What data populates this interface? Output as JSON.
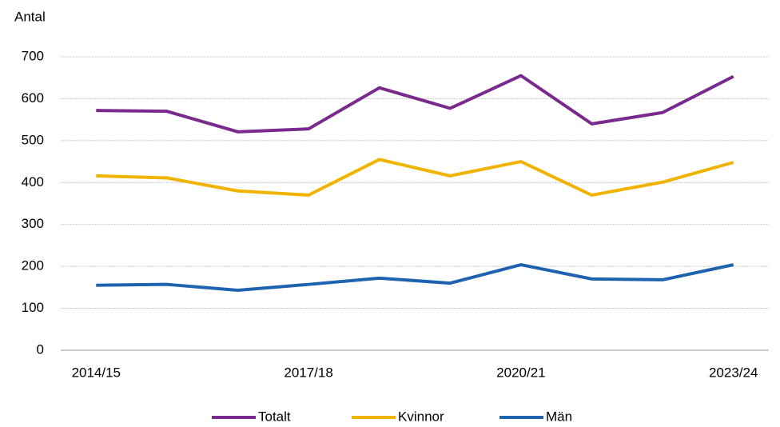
{
  "chart_data": {
    "type": "line",
    "y_label": "Antal",
    "categories": [
      "2014/15",
      null,
      null,
      "2017/18",
      null,
      null,
      "2020/21",
      null,
      null,
      "2023/24"
    ],
    "series": [
      {
        "name": "Totalt",
        "color": "#7a2a8c",
        "values": [
          572,
          570,
          521,
          528,
          626,
          577,
          655,
          540,
          567,
          653
        ]
      },
      {
        "name": "Kvinnor",
        "color": "#f0b400",
        "values": [
          416,
          411,
          380,
          370,
          455,
          416,
          450,
          370,
          401,
          448
        ]
      },
      {
        "name": "Män",
        "color": "#1f62b0",
        "values": [
          155,
          157,
          143,
          157,
          172,
          160,
          204,
          170,
          168,
          204
        ]
      }
    ],
    "ylim": [
      0,
      700
    ],
    "yticks": [
      0,
      100,
      200,
      300,
      400,
      500,
      600,
      700
    ],
    "grid": true,
    "legend": "bottom"
  }
}
